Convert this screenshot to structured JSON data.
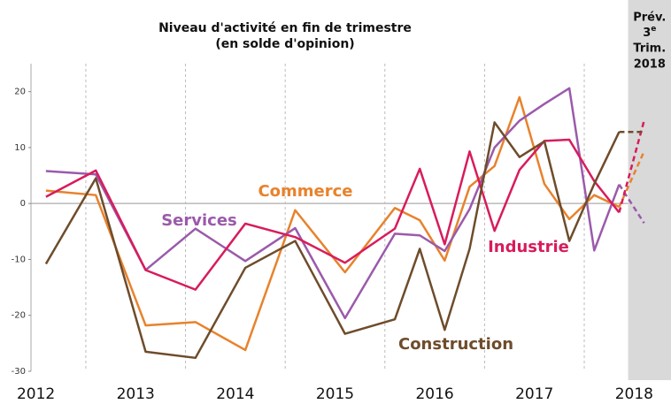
{
  "chart_data": {
    "type": "line",
    "title": [
      "Niveau d'activité en fin de trimestre",
      "(en solde d'opinion)"
    ],
    "forecast_label": {
      "line1": "Prév.",
      "number": "3",
      "suffix": "e",
      "line3": "Trim.",
      "line4": "2018"
    },
    "x": [
      2012.6,
      2013.1,
      2013.6,
      2014.1,
      2014.6,
      2015.1,
      2015.6,
      2016.1,
      2016.35,
      2016.6,
      2016.85,
      2017.1,
      2017.35,
      2017.6,
      2017.85,
      2018.1,
      2018.35,
      2018.6
    ],
    "xlim": [
      2012.45,
      2018.87
    ],
    "xticks": [
      {
        "value": 2012.5,
        "label": "2012"
      },
      {
        "value": 2013.5,
        "label": "2013"
      },
      {
        "value": 2014.5,
        "label": "2014"
      },
      {
        "value": 2015.5,
        "label": "2015"
      },
      {
        "value": 2016.5,
        "label": "2016"
      },
      {
        "value": 2017.5,
        "label": "2017"
      },
      {
        "value": 2018.5,
        "label": "2018"
      }
    ],
    "year_separators": [
      2013,
      2014,
      2015,
      2016,
      2017,
      2018
    ],
    "forecast_shade": [
      2018.44,
      2018.87
    ],
    "ylim": [
      -30,
      25
    ],
    "yticks": [
      -30,
      -20,
      -10,
      0,
      10,
      20
    ],
    "series": [
      {
        "name": "Commerce",
        "color": "#e8822c",
        "values": [
          2.3,
          1.5,
          -21.8,
          -21.2,
          -26.2,
          -1.2,
          -12.3,
          -0.8,
          -3,
          -10.2,
          3,
          6.7,
          19,
          3.5,
          -2.8,
          1.5,
          -0.6,
          9.3
        ]
      },
      {
        "name": "Services",
        "color": "#9b5aab",
        "values": [
          5.8,
          5.2,
          -11.9,
          -4.5,
          -10.3,
          -4.4,
          -20.5,
          -5.4,
          -5.7,
          -8.5,
          -1,
          10,
          14.8,
          17.8,
          20.6,
          -8.4,
          3.4,
          -3.5
        ]
      },
      {
        "name": "Industrie",
        "color": "#d81c5b",
        "values": [
          1.2,
          5.9,
          -11.9,
          -15.4,
          -3.6,
          -6,
          -10.6,
          -4.5,
          6.2,
          -7.3,
          9.3,
          -4.9,
          6,
          11.2,
          11.4,
          4,
          -1.6,
          14.8
        ]
      },
      {
        "name": "Construction",
        "color": "#6e4c2b",
        "values": [
          -10.8,
          4.5,
          -26.5,
          -27.6,
          -11.5,
          -6.7,
          -23.3,
          -20.7,
          -8.1,
          -22.6,
          -8.1,
          14.5,
          8.3,
          11.1,
          -6.7,
          3.5,
          12.8,
          12.8
        ]
      }
    ]
  }
}
